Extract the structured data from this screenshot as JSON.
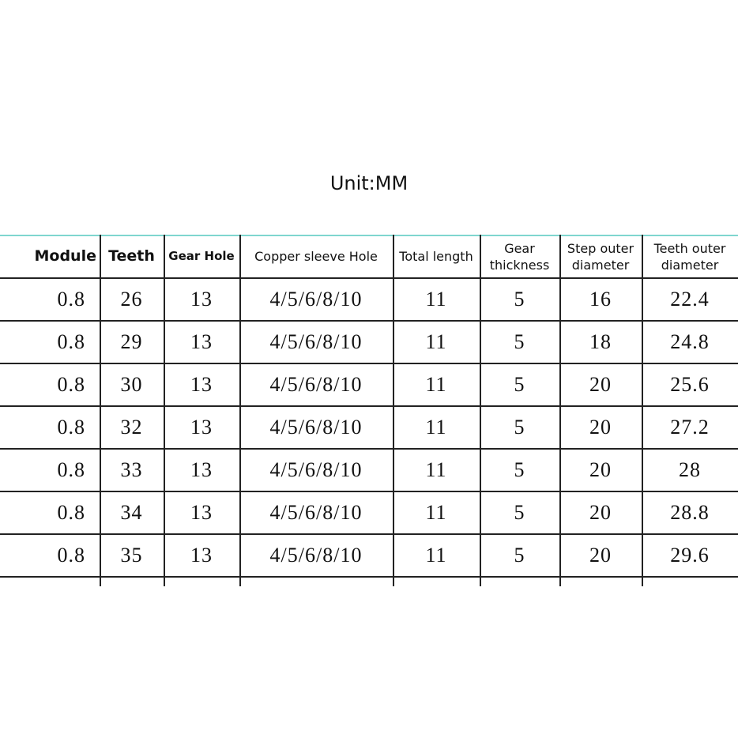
{
  "title": "Unit:MM",
  "table": {
    "header": [
      "Module",
      "Teeth",
      "Gear Hole",
      "Copper sleeve Hole",
      "Total length",
      "Gear thickness",
      "Step outer diameter",
      "Teeth outer diameter"
    ],
    "rows": [
      [
        "0.8",
        "26",
        "13",
        "4/5/6/8/10",
        "11",
        "5",
        "16",
        "22.4"
      ],
      [
        "0.8",
        "29",
        "13",
        "4/5/6/8/10",
        "11",
        "5",
        "18",
        "24.8"
      ],
      [
        "0.8",
        "30",
        "13",
        "4/5/6/8/10",
        "11",
        "5",
        "20",
        "25.6"
      ],
      [
        "0.8",
        "32",
        "13",
        "4/5/6/8/10",
        "11",
        "5",
        "20",
        "27.2"
      ],
      [
        "0.8",
        "33",
        "13",
        "4/5/6/8/10",
        "11",
        "5",
        "20",
        "28"
      ],
      [
        "0.8",
        "34",
        "13",
        "4/5/6/8/10",
        "11",
        "5",
        "20",
        "28.8"
      ],
      [
        "0.8",
        "35",
        "13",
        "4/5/6/8/10",
        "11",
        "5",
        "20",
        "29.6"
      ]
    ]
  }
}
